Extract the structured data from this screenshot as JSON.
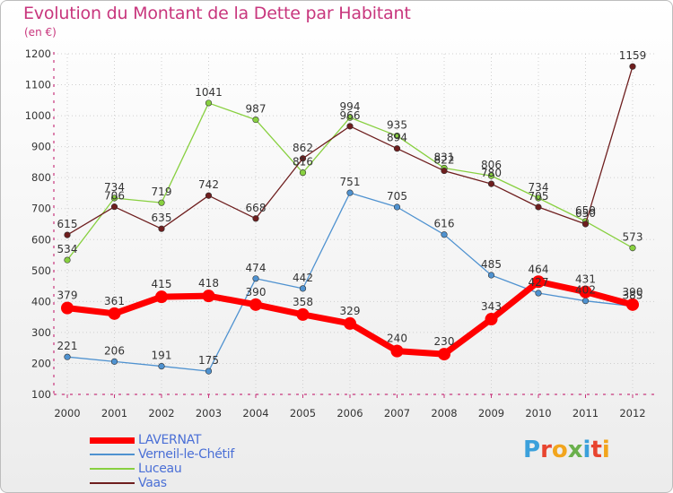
{
  "title": "Evolution du Montant de la Dette par Habitant",
  "subtitle": "(en €)",
  "brand": {
    "text": "Proxiti",
    "letter_colors": [
      "#3ba0db",
      "#e8442f",
      "#f2a51d",
      "#6ab04c",
      "#3ba0db",
      "#e8442f",
      "#f2a51d"
    ]
  },
  "colors": {
    "title": "#c8367d",
    "axis": "#c8367d",
    "tick_text": "#333333",
    "legend_text": "#4a6fd6"
  },
  "chart_data": {
    "type": "line",
    "title": "Evolution du Montant de la Dette par Habitant",
    "subtitle": "(en €)",
    "xlabel": "",
    "ylabel": "",
    "x": [
      "2000",
      "2001",
      "2002",
      "2003",
      "2004",
      "2005",
      "2006",
      "2007",
      "2008",
      "2009",
      "2010",
      "2011",
      "2012"
    ],
    "ylim": [
      100,
      1200
    ],
    "yticks": [
      100,
      200,
      300,
      400,
      500,
      600,
      700,
      800,
      900,
      1000,
      1100,
      1200
    ],
    "grid": true,
    "legend_position": "bottom-left",
    "series": [
      {
        "name": "LAVERNAT",
        "color": "#ff0000",
        "values": [
          379,
          361,
          415,
          418,
          390,
          358,
          329,
          240,
          230,
          343,
          464,
          431,
          390
        ],
        "labels": [
          "379",
          "361",
          "415",
          "418",
          "390",
          "358",
          "329",
          "240",
          "230",
          "343",
          "464",
          "431",
          "390"
        ]
      },
      {
        "name": "Verneil-le-Chétif",
        "color": "#4f92d0",
        "values": [
          221,
          206,
          191,
          175,
          474,
          442,
          751,
          705,
          616,
          485,
          427,
          402,
          385
        ],
        "labels": [
          "221",
          "206",
          "191",
          "175",
          "474",
          "442",
          "751",
          "705",
          "616",
          "485",
          "427",
          "402",
          "385"
        ]
      },
      {
        "name": "Luceau",
        "color": "#88d040",
        "values": [
          534,
          734,
          719,
          1041,
          987,
          816,
          994,
          935,
          831,
          806,
          734,
          659,
          573
        ],
        "labels": [
          "534",
          "734",
          "719",
          "1041",
          "987",
          "816",
          "994",
          "935",
          "831",
          "806",
          "734",
          "659",
          "573"
        ]
      },
      {
        "name": "Vaas",
        "color": "#6e1e1e",
        "values": [
          615,
          706,
          635,
          742,
          668,
          862,
          966,
          894,
          822,
          780,
          705,
          650,
          1159
        ],
        "labels": [
          "615",
          "706",
          "635",
          "742",
          "668",
          "862",
          "966",
          "894",
          "822",
          "780",
          "705",
          "650",
          "1159"
        ]
      }
    ]
  }
}
